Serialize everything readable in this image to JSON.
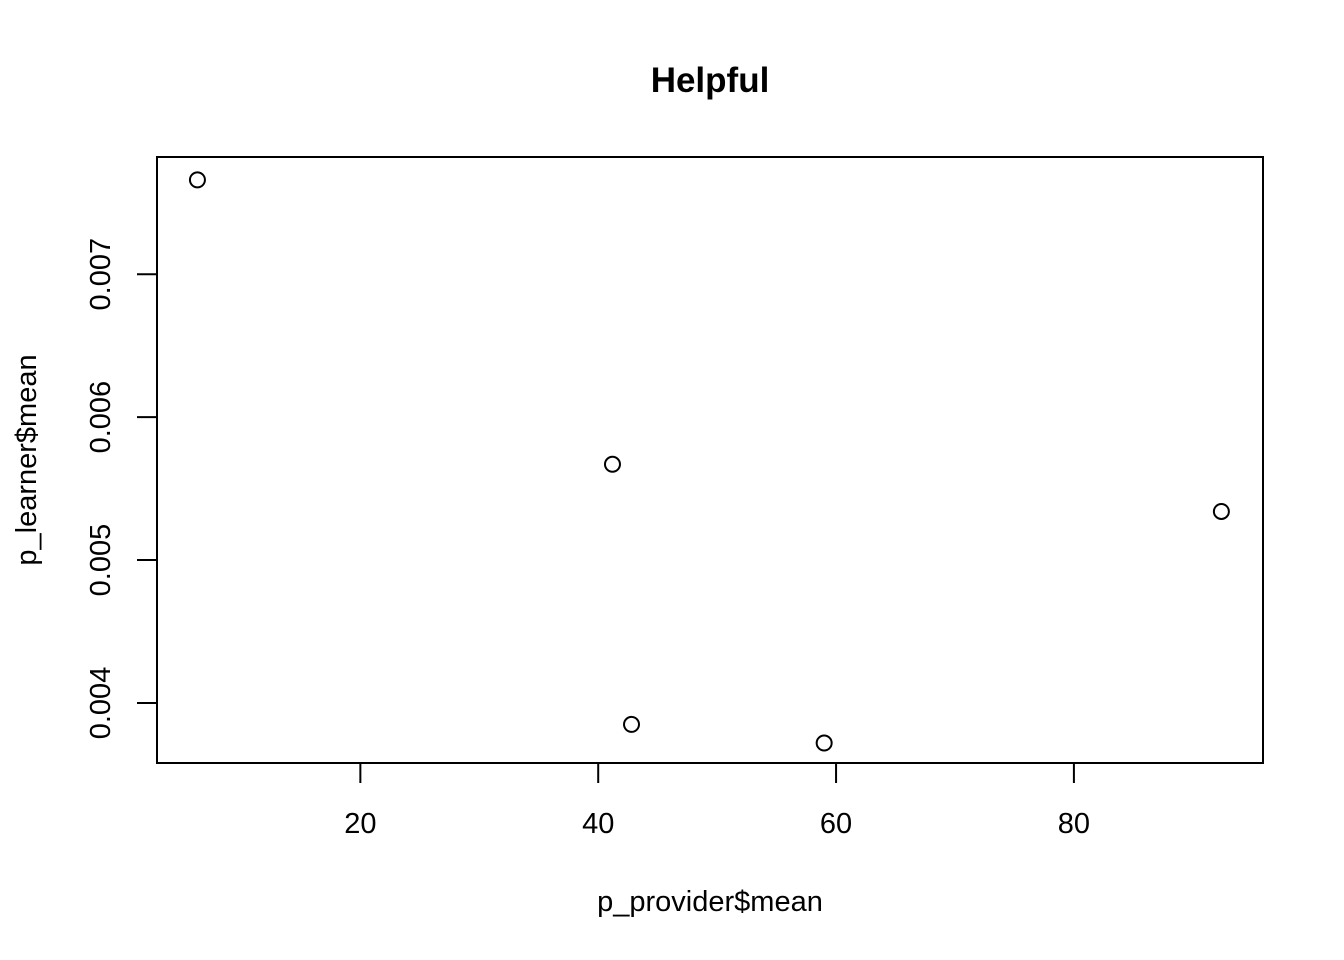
{
  "chart_data": {
    "type": "scatter",
    "title": "Helpful",
    "xlabel": "p_provider$mean",
    "ylabel": "p_learner$mean",
    "xlim": [
      2.9,
      95.9
    ],
    "ylim": [
      0.00358,
      0.00782
    ],
    "x_ticks": [
      20,
      40,
      60,
      80
    ],
    "x_tick_labels": [
      "20",
      "40",
      "60",
      "80"
    ],
    "y_ticks": [
      0.004,
      0.005,
      0.006,
      0.007
    ],
    "y_tick_labels": [
      "0.004",
      "0.005",
      "0.006",
      "0.007"
    ],
    "grid": false,
    "legend": "none",
    "marker": "open-circle",
    "points": [
      {
        "x": 6.3,
        "y": 0.00766
      },
      {
        "x": 41.2,
        "y": 0.00567
      },
      {
        "x": 42.8,
        "y": 0.00385
      },
      {
        "x": 59.0,
        "y": 0.00372
      },
      {
        "x": 92.4,
        "y": 0.00534
      }
    ]
  }
}
